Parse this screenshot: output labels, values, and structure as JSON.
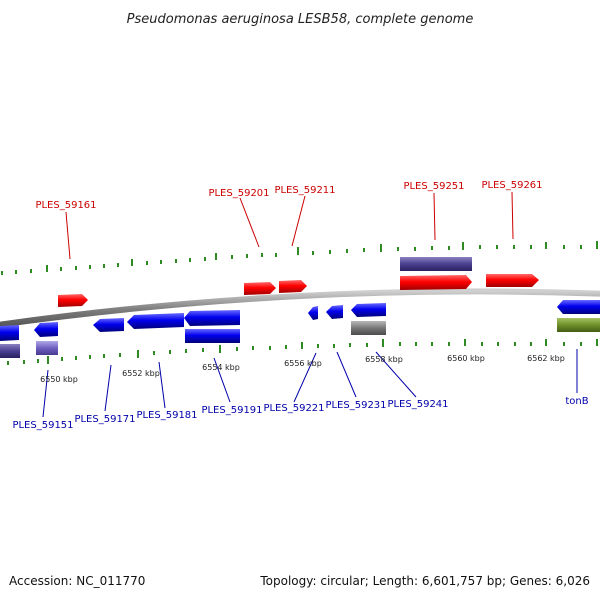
{
  "title": "Pseudomonas aeruginosa LESB58, complete genome",
  "accession": "Accession: NC_011770",
  "topology": "Topology: circular; Length: 6,601,757 bp; Genes: 6,026",
  "colors": {
    "forward": "#ff0000",
    "reverse": "#0000ee",
    "backbone": "#808080",
    "tick": "#2e8b22",
    "forward_label": "#cc0000",
    "reverse_label": "#0000aa"
  },
  "forward_labels": [
    "PLES_59161",
    "PLES_59201",
    "PLES_59211",
    "PLES_59251",
    "PLES_59261"
  ],
  "reverse_labels": [
    "PLES_59151",
    "PLES_59171",
    "PLES_59181",
    "PLES_59191",
    "PLES_59221",
    "PLES_59231",
    "PLES_59241",
    "tonB"
  ],
  "scale_labels": [
    "6550 kbp",
    "6552 kbp",
    "6554 kbp",
    "6556 kbp",
    "6558 kbp",
    "6560 kbp",
    "6562 kbp"
  ]
}
